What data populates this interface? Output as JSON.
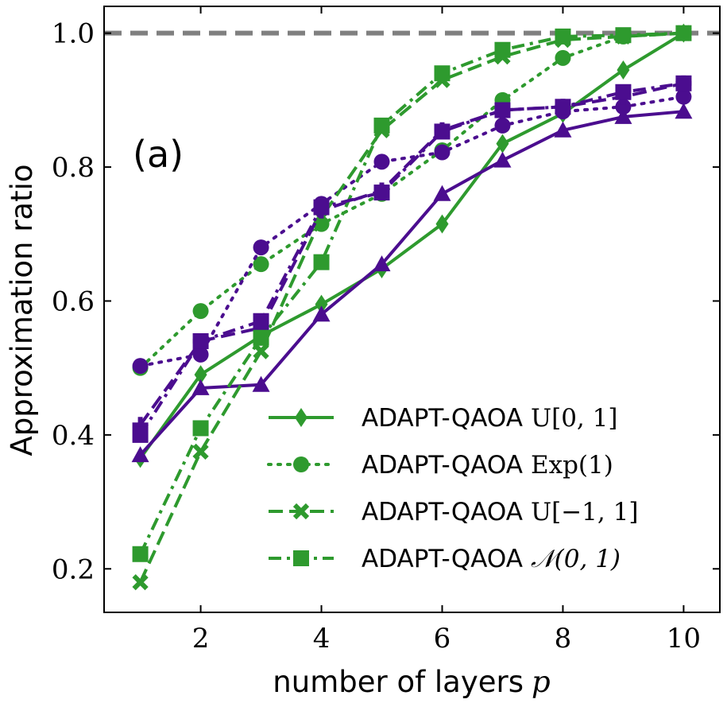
{
  "chart_data": {
    "type": "line",
    "title": "",
    "panel_label": "(a)",
    "xlabel": "number of layers",
    "xlabel_symbol": "p",
    "ylabel": "Approximation ratio",
    "xlim": [
      0.4,
      10.6
    ],
    "ylim": [
      0.135,
      1.04
    ],
    "xticks": [
      2,
      4,
      6,
      8,
      10
    ],
    "xtick_labels": [
      "2",
      "4",
      "6",
      "8",
      "10"
    ],
    "yticks": [
      0.2,
      0.4,
      0.6,
      0.8,
      1.0
    ],
    "ytick_labels": [
      "0.2",
      "0.4",
      "0.6",
      "0.8",
      "1.0"
    ],
    "reference_line": {
      "y": 1.0,
      "style": "dashed",
      "color": "#808080"
    },
    "grid": false,
    "legend_position": "lower-right",
    "colors": {
      "green": "#2e9a2e",
      "purple": "#4b0d8f"
    },
    "x": [
      1,
      2,
      3,
      4,
      5,
      6,
      7,
      8,
      9,
      10
    ],
    "series": [
      {
        "legend_prefix": "ADAPT-QAOA",
        "legend_suffix": "U[0, 1]",
        "legend_index": 0,
        "color": "green",
        "marker": "diamond",
        "dash": "solid",
        "values": [
          0.365,
          0.49,
          0.548,
          0.595,
          0.648,
          0.715,
          0.835,
          0.88,
          0.945,
          1.0
        ]
      },
      {
        "color": "purple",
        "marker": "triangle",
        "dash": "solid",
        "values": [
          0.37,
          0.47,
          0.475,
          0.58,
          0.655,
          0.76,
          0.81,
          0.855,
          0.875,
          0.883
        ]
      },
      {
        "legend_prefix": "ADAPT-QAOA",
        "legend_suffix": "Exp(1)",
        "legend_index": 1,
        "color": "green",
        "marker": "circle",
        "dash": "dotted",
        "values": [
          0.5,
          0.585,
          0.655,
          0.715,
          0.76,
          0.825,
          0.9,
          0.963,
          0.995,
          1.0
        ]
      },
      {
        "color": "purple",
        "marker": "circle",
        "dash": "dotted",
        "values": [
          0.503,
          0.52,
          0.68,
          0.745,
          0.808,
          0.822,
          0.862,
          0.883,
          0.89,
          0.905
        ]
      },
      {
        "legend_prefix": "ADAPT-QAOA",
        "legend_suffix": "U[−1, 1]",
        "legend_index": 2,
        "color": "green",
        "marker": "x",
        "dash": "dashed",
        "values": [
          0.18,
          0.375,
          0.525,
          0.725,
          0.855,
          0.93,
          0.965,
          0.99,
          0.995,
          1.0
        ]
      },
      {
        "color": "purple",
        "marker": "plus",
        "dash": "dashed",
        "values": [
          0.415,
          0.54,
          0.56,
          0.735,
          0.765,
          0.855,
          0.885,
          0.89,
          0.905,
          0.925
        ]
      },
      {
        "legend_prefix": "ADAPT-QAOA",
        "legend_suffix": "𝒩(0, 1)",
        "legend_index": 3,
        "color": "green",
        "marker": "square",
        "dash": "dashdot",
        "values": [
          0.222,
          0.41,
          0.545,
          0.658,
          0.862,
          0.94,
          0.975,
          0.995,
          0.997,
          1.0
        ]
      },
      {
        "color": "purple",
        "marker": "square",
        "dash": "dashdot",
        "values": [
          0.4,
          0.54,
          0.57,
          0.74,
          0.762,
          0.853,
          0.885,
          0.89,
          0.912,
          0.925
        ]
      }
    ]
  }
}
